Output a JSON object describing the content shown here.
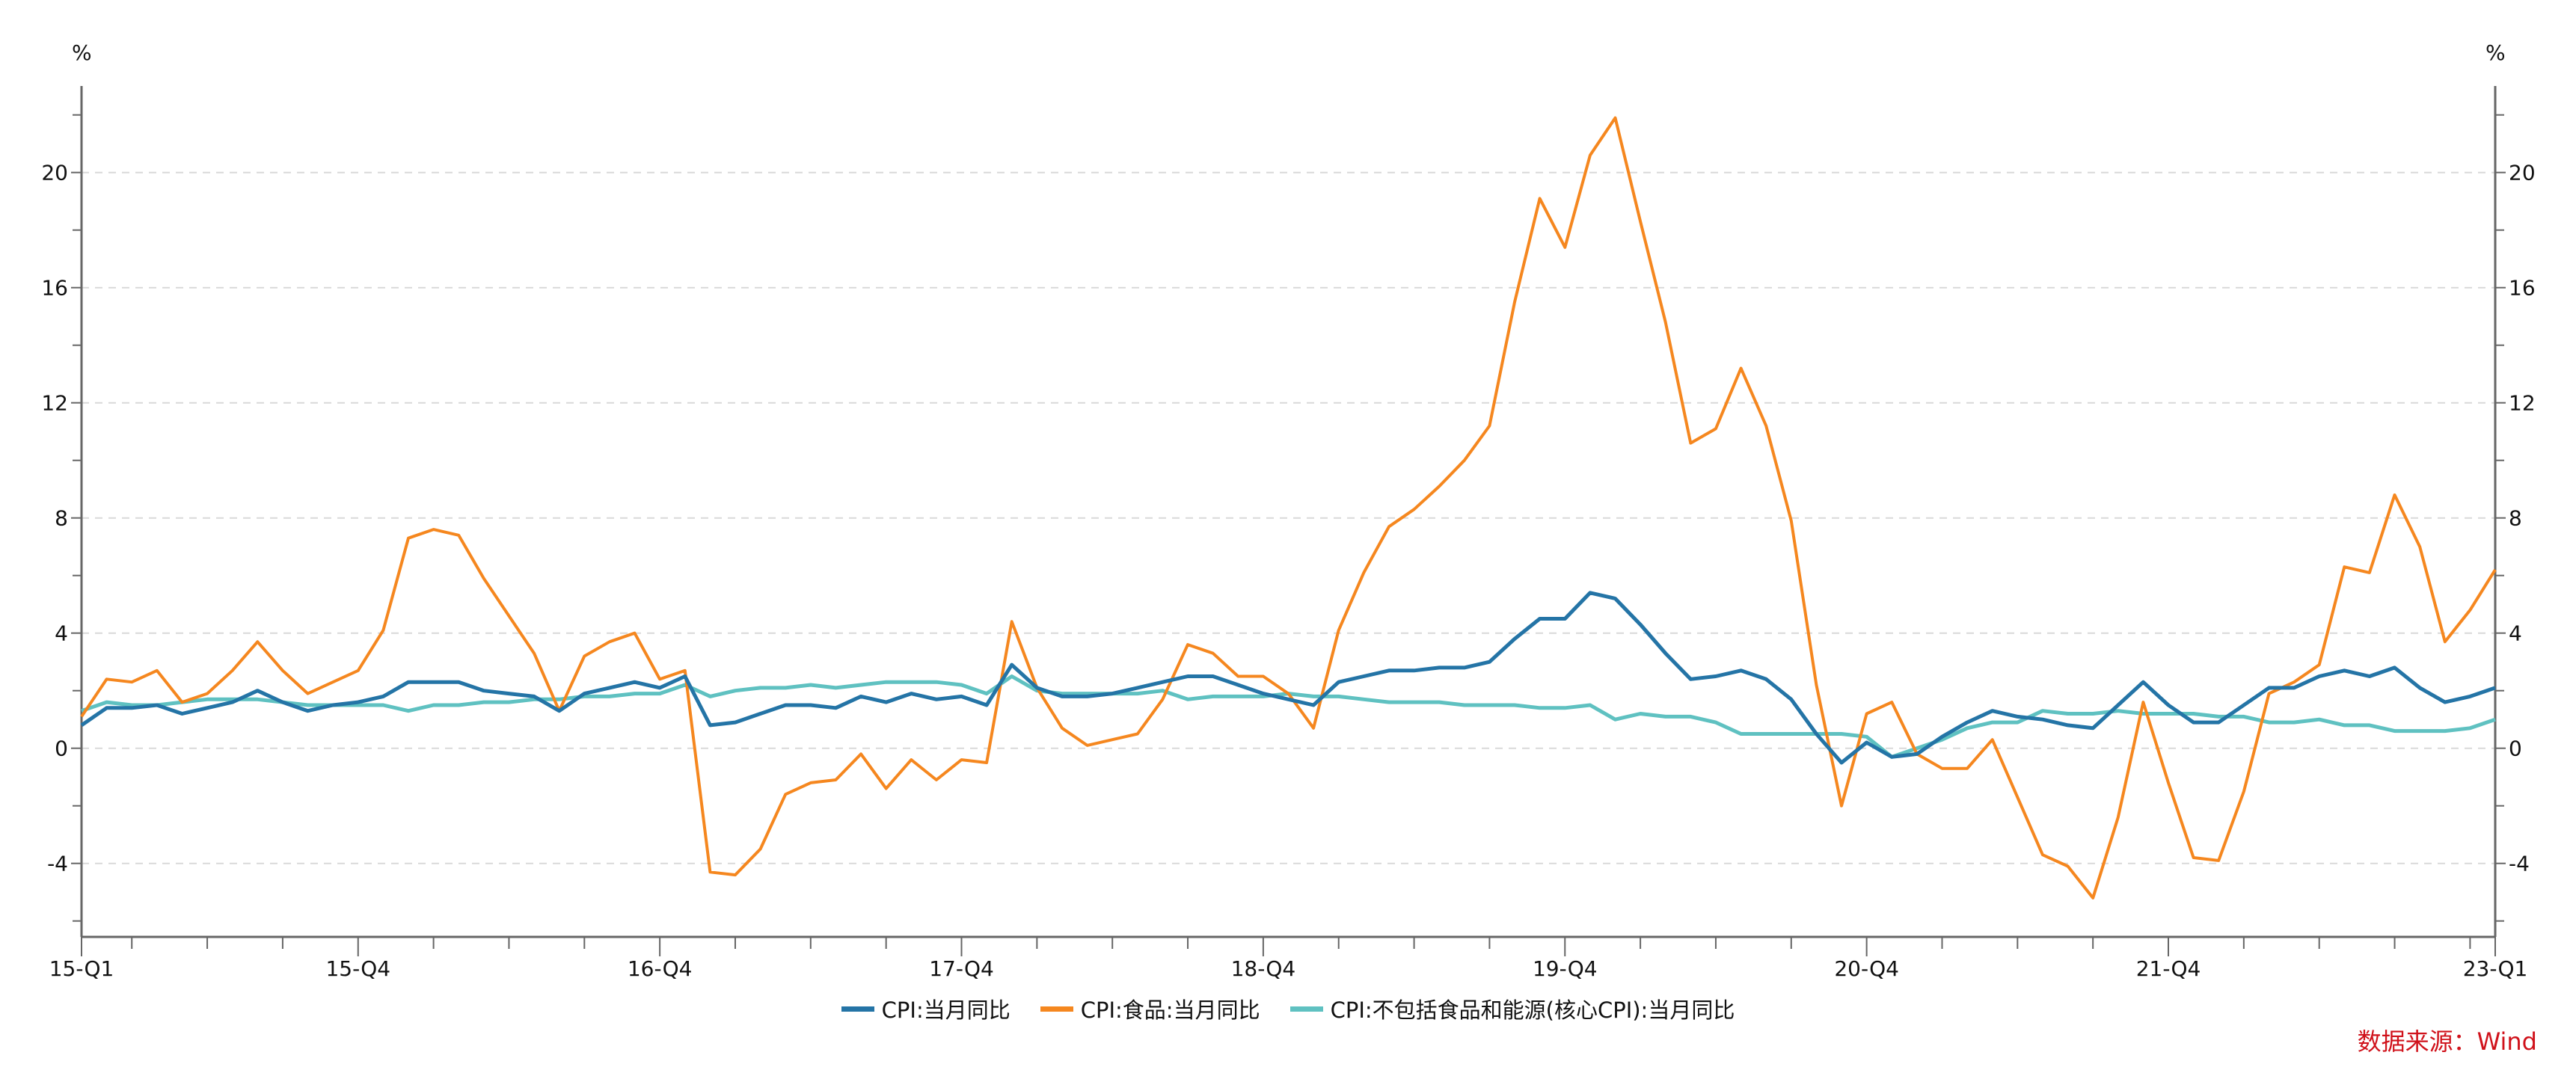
{
  "chart_data": {
    "type": "line",
    "title": "",
    "xlabel": "",
    "ylabel": "%",
    "ylabel_right": "%",
    "ylim": [
      -6.5,
      22.6
    ],
    "yticks": [
      -4,
      0,
      4,
      8,
      12,
      16,
      20
    ],
    "grid": "horizontal dashed",
    "legend_position": "bottom",
    "x_tick_labels": [
      "15-Q1",
      "15-Q4",
      "16-Q4",
      "17-Q4",
      "18-Q4",
      "19-Q4",
      "20-Q4",
      "21-Q4",
      "23-Q1"
    ],
    "x_tick_label_month_index": [
      0,
      11,
      23,
      35,
      47,
      59,
      71,
      83,
      96
    ],
    "x_start": "2015-01",
    "x_end": "2023-01",
    "frequency": "monthly",
    "series": [
      {
        "name": "CPI:当月同比",
        "color": "#2474a6",
        "values": [
          0.8,
          1.4,
          1.4,
          1.5,
          1.2,
          1.4,
          1.6,
          2.0,
          1.6,
          1.3,
          1.5,
          1.6,
          1.8,
          2.3,
          2.3,
          2.3,
          2.0,
          1.9,
          1.8,
          1.3,
          1.9,
          2.1,
          2.3,
          2.1,
          2.5,
          0.8,
          0.9,
          1.2,
          1.5,
          1.5,
          1.4,
          1.8,
          1.6,
          1.9,
          1.7,
          1.8,
          1.5,
          2.9,
          2.1,
          1.8,
          1.8,
          1.9,
          2.1,
          2.3,
          2.5,
          2.5,
          2.2,
          1.9,
          1.7,
          1.5,
          2.3,
          2.5,
          2.7,
          2.7,
          2.8,
          2.8,
          3.0,
          3.8,
          4.5,
          4.5,
          5.4,
          5.2,
          4.3,
          3.3,
          2.4,
          2.5,
          2.7,
          2.4,
          1.7,
          0.5,
          -0.5,
          0.2,
          -0.3,
          -0.2,
          0.4,
          0.9,
          1.3,
          1.1,
          1.0,
          0.8,
          0.7,
          1.5,
          2.3,
          1.5,
          0.9,
          0.9,
          1.5,
          2.1,
          2.1,
          2.5,
          2.7,
          2.5,
          2.8,
          2.1,
          1.6,
          1.8,
          2.1
        ]
      },
      {
        "name": "CPI:食品:当月同比",
        "color": "#f5871f",
        "values": [
          1.1,
          2.4,
          2.3,
          2.7,
          1.6,
          1.9,
          2.7,
          3.7,
          2.7,
          1.9,
          2.3,
          2.7,
          4.1,
          7.3,
          7.6,
          7.4,
          5.9,
          4.6,
          3.3,
          1.3,
          3.2,
          3.7,
          4.0,
          2.4,
          2.7,
          -4.3,
          -4.4,
          -3.5,
          -1.6,
          -1.2,
          -1.1,
          -0.2,
          -1.4,
          -0.4,
          -1.1,
          -0.4,
          -0.5,
          4.4,
          2.1,
          0.7,
          0.1,
          0.3,
          0.5,
          1.7,
          3.6,
          3.3,
          2.5,
          2.5,
          1.9,
          0.7,
          4.1,
          6.1,
          7.7,
          8.3,
          9.1,
          10.0,
          11.2,
          15.5,
          19.1,
          17.4,
          20.6,
          21.9,
          18.3,
          14.8,
          10.6,
          11.1,
          13.2,
          11.2,
          7.9,
          2.2,
          -2.0,
          1.2,
          1.6,
          -0.2,
          -0.7,
          -0.7,
          0.3,
          -1.7,
          -3.7,
          -4.1,
          -5.2,
          -2.4,
          1.6,
          -1.2,
          -3.8,
          -3.9,
          -1.5,
          1.9,
          2.3,
          2.9,
          6.3,
          6.1,
          8.8,
          7.0,
          3.7,
          4.8,
          6.2
        ]
      },
      {
        "name": "CPI:不包括食品和能源(核心CPI):当月同比",
        "color": "#5fc1c1",
        "values": [
          1.3,
          1.6,
          1.5,
          1.5,
          1.6,
          1.7,
          1.7,
          1.7,
          1.6,
          1.5,
          1.5,
          1.5,
          1.5,
          1.3,
          1.5,
          1.5,
          1.6,
          1.6,
          1.7,
          1.7,
          1.8,
          1.8,
          1.9,
          1.9,
          2.2,
          1.8,
          2.0,
          2.1,
          2.1,
          2.2,
          2.1,
          2.2,
          2.3,
          2.3,
          2.3,
          2.2,
          1.9,
          2.5,
          2.0,
          1.9,
          1.9,
          1.9,
          1.9,
          2.0,
          1.7,
          1.8,
          1.8,
          1.8,
          1.9,
          1.8,
          1.8,
          1.7,
          1.6,
          1.6,
          1.6,
          1.5,
          1.5,
          1.5,
          1.4,
          1.4,
          1.5,
          1.0,
          1.2,
          1.1,
          1.1,
          0.9,
          0.5,
          0.5,
          0.5,
          0.5,
          0.5,
          0.4,
          -0.3,
          0.0,
          0.3,
          0.7,
          0.9,
          0.9,
          1.3,
          1.2,
          1.2,
          1.3,
          1.2,
          1.2,
          1.2,
          1.1,
          1.1,
          0.9,
          0.9,
          1.0,
          0.8,
          0.8,
          0.6,
          0.6,
          0.6,
          0.7,
          1.0
        ]
      }
    ],
    "annotations": [
      "数据来源：Wind"
    ]
  },
  "axes": {
    "left_unit": "%",
    "right_unit": "%"
  },
  "legend": {
    "items": [
      {
        "label": "CPI:当月同比",
        "color": "#2474a6"
      },
      {
        "label": "CPI:食品:当月同比",
        "color": "#f5871f"
      },
      {
        "label": "CPI:不包括食品和能源(核心CPI):当月同比",
        "color": "#5fc1c1"
      }
    ]
  },
  "source": {
    "label": "数据来源：Wind"
  }
}
